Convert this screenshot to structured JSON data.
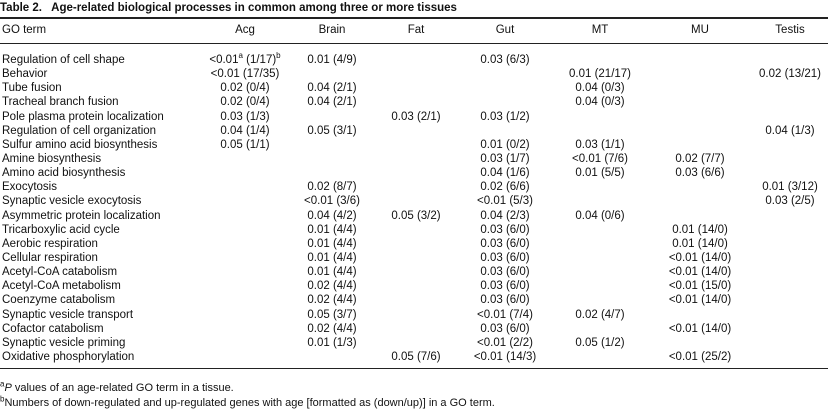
{
  "caption": {
    "label": "Table 2.",
    "title": "Age-related biological processes in common among three or more tissues"
  },
  "table": {
    "columns": [
      "GO term",
      "Acg",
      "Brain",
      "Fat",
      "Gut",
      "MT",
      "MU",
      "Testis"
    ],
    "rows": [
      {
        "term": "Regulation of cell shape",
        "cells": [
          [
            {
              "text": "<0.01"
            },
            {
              "sup": "a"
            },
            {
              "text": " (1/17)"
            },
            {
              "sup": "b"
            }
          ],
          "0.01 (4/9)",
          null,
          "0.03 (6/3)",
          null,
          null,
          null
        ]
      },
      {
        "term": "Behavior",
        "cells": [
          "<0.01 (17/35)",
          null,
          null,
          null,
          "0.01 (21/17)",
          null,
          "0.02 (13/21)"
        ]
      },
      {
        "term": "Tube fusion",
        "cells": [
          "0.02 (0/4)",
          "0.04 (2/1)",
          null,
          null,
          "0.04 (0/3)",
          null,
          null
        ]
      },
      {
        "term": "Tracheal branch fusion",
        "cells": [
          "0.02 (0/4)",
          "0.04 (2/1)",
          null,
          null,
          "0.04 (0/3)",
          null,
          null
        ]
      },
      {
        "term": "Pole plasma protein localization",
        "cells": [
          "0.03 (1/3)",
          null,
          "0.03 (2/1)",
          "0.03 (1/2)",
          null,
          null,
          null
        ]
      },
      {
        "term": "Regulation of cell organization",
        "cells": [
          "0.04 (1/4)",
          "0.05 (3/1)",
          null,
          null,
          null,
          null,
          "0.04 (1/3)"
        ]
      },
      {
        "term": "Sulfur amino acid biosynthesis",
        "cells": [
          "0.05 (1/1)",
          null,
          null,
          "0.01 (0/2)",
          "0.03 (1/1)",
          null,
          null
        ]
      },
      {
        "term": "Amine biosynthesis",
        "cells": [
          null,
          null,
          null,
          "0.03 (1/7)",
          "<0.01 (7/6)",
          "0.02 (7/7)",
          null
        ]
      },
      {
        "term": "Amino acid biosynthesis",
        "cells": [
          null,
          null,
          null,
          "0.04 (1/6)",
          "0.01 (5/5)",
          "0.03 (6/6)",
          null
        ]
      },
      {
        "term": "Exocytosis",
        "cells": [
          null,
          "0.02 (8/7)",
          null,
          "0.02 (6/6)",
          null,
          null,
          "0.01 (3/12)"
        ]
      },
      {
        "term": "Synaptic vesicle exocytosis",
        "cells": [
          null,
          "<0.01 (3/6)",
          null,
          "<0.01 (5/3)",
          null,
          null,
          "0.03 (2/5)"
        ]
      },
      {
        "term": "Asymmetric protein localization",
        "cells": [
          null,
          "0.04 (4/2)",
          "0.05 (3/2)",
          "0.04 (2/3)",
          "0.04 (0/6)",
          null,
          null
        ]
      },
      {
        "term": "Tricarboxylic acid cycle",
        "cells": [
          null,
          "0.01 (4/4)",
          null,
          "0.03 (6/0)",
          null,
          "0.01 (14/0)",
          null
        ]
      },
      {
        "term": "Aerobic respiration",
        "cells": [
          null,
          "0.01 (4/4)",
          null,
          "0.03 (6/0)",
          null,
          "0.01 (14/0)",
          null
        ]
      },
      {
        "term": "Cellular respiration",
        "cells": [
          null,
          "0.01 (4/4)",
          null,
          "0.03 (6/0)",
          null,
          "<0.01 (14/0)",
          null
        ]
      },
      {
        "term": "Acetyl-CoA catabolism",
        "cells": [
          null,
          "0.01 (4/4)",
          null,
          "0.03 (6/0)",
          null,
          "<0.01 (14/0)",
          null
        ]
      },
      {
        "term": "Acetyl-CoA metabolism",
        "cells": [
          null,
          "0.02 (4/4)",
          null,
          "0.03 (6/0)",
          null,
          "<0.01 (15/0)",
          null
        ]
      },
      {
        "term": "Coenzyme catabolism",
        "cells": [
          null,
          "0.02 (4/4)",
          null,
          "0.03 (6/0)",
          null,
          "<0.01 (14/0)",
          null
        ]
      },
      {
        "term": "Synaptic vesicle transport",
        "cells": [
          null,
          "0.05 (3/7)",
          null,
          "<0.01 (7/4)",
          "0.02 (4/7)",
          null,
          null
        ]
      },
      {
        "term": "Cofactor catabolism",
        "cells": [
          null,
          "0.02 (4/4)",
          null,
          "0.03 (6/0)",
          null,
          "<0.01 (14/0)",
          null
        ]
      },
      {
        "term": "Synaptic vesicle priming",
        "cells": [
          null,
          "0.01 (1/3)",
          null,
          "<0.01 (2/2)",
          "0.05 (1/2)",
          null,
          null
        ]
      },
      {
        "term": "Oxidative phosphorylation",
        "cells": [
          null,
          null,
          "0.05 (7/6)",
          "<0.01 (14/3)",
          null,
          "<0.01 (25/2)",
          null
        ]
      }
    ]
  },
  "footnotes": [
    {
      "mark": "a",
      "italic": "P",
      "text": " values of an age-related GO term in a tissue."
    },
    {
      "mark": "b",
      "text": "Numbers of down-regulated and up-regulated genes with age [formatted as (down/up)] in a GO term."
    }
  ]
}
